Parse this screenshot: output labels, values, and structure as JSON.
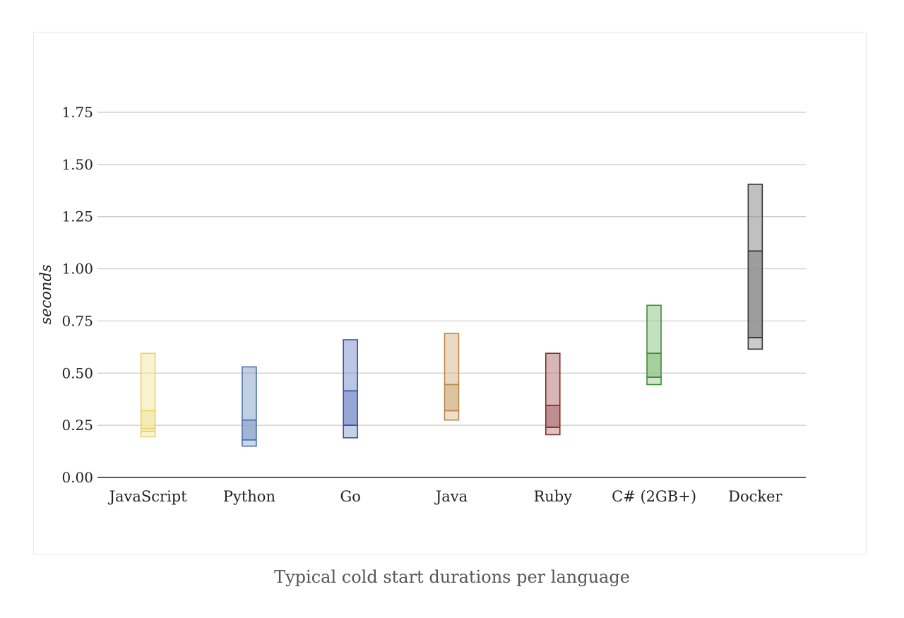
{
  "chart_data": {
    "type": "box",
    "title": "",
    "caption": "Typical cold start durations per language",
    "xlabel": "",
    "ylabel": "seconds",
    "ylim": [
      0,
      1.75
    ],
    "yticks": [
      "0.00",
      "0.25",
      "0.50",
      "0.75",
      "1.00",
      "1.25",
      "1.50",
      "1.75"
    ],
    "ytick_values": [
      0,
      0.25,
      0.5,
      0.75,
      1.0,
      1.25,
      1.5,
      1.75
    ],
    "categories": [
      "JavaScript",
      "Python",
      "Go",
      "Java",
      "Ruby",
      "C# (2GB+)",
      "Docker"
    ],
    "series": [
      {
        "name": "JavaScript",
        "min": 0.195,
        "q1": 0.22,
        "median": 0.235,
        "q3": 0.32,
        "max": 0.595,
        "color": "#e8d36a",
        "fill": "#f3e9a8"
      },
      {
        "name": "Python",
        "min": 0.15,
        "q1": 0.18,
        "median": 0.18,
        "q3": 0.275,
        "max": 0.53,
        "color": "#4a6fae",
        "fill": "#8fa8cc"
      },
      {
        "name": "Go",
        "min": 0.19,
        "q1": 0.25,
        "median": 0.25,
        "q3": 0.415,
        "max": 0.66,
        "color": "#3553a6",
        "fill": "#8596cd"
      },
      {
        "name": "Java",
        "min": 0.275,
        "q1": 0.32,
        "median": 0.32,
        "q3": 0.445,
        "max": 0.69,
        "color": "#b98c4e",
        "fill": "#d7b98f"
      },
      {
        "name": "Ruby",
        "min": 0.205,
        "q1": 0.24,
        "median": 0.24,
        "q3": 0.345,
        "max": 0.595,
        "color": "#8b2e2e",
        "fill": "#b57a7a"
      },
      {
        "name": "C# (2GB+)",
        "min": 0.445,
        "q1": 0.48,
        "median": 0.48,
        "q3": 0.595,
        "max": 0.825,
        "color": "#3e8f33",
        "fill": "#96c58e"
      },
      {
        "name": "Docker",
        "min": 0.615,
        "q1": 0.67,
        "median": 0.67,
        "q3": 1.085,
        "max": 1.405,
        "color": "#333333",
        "fill": "#8c8c8c"
      }
    ]
  }
}
